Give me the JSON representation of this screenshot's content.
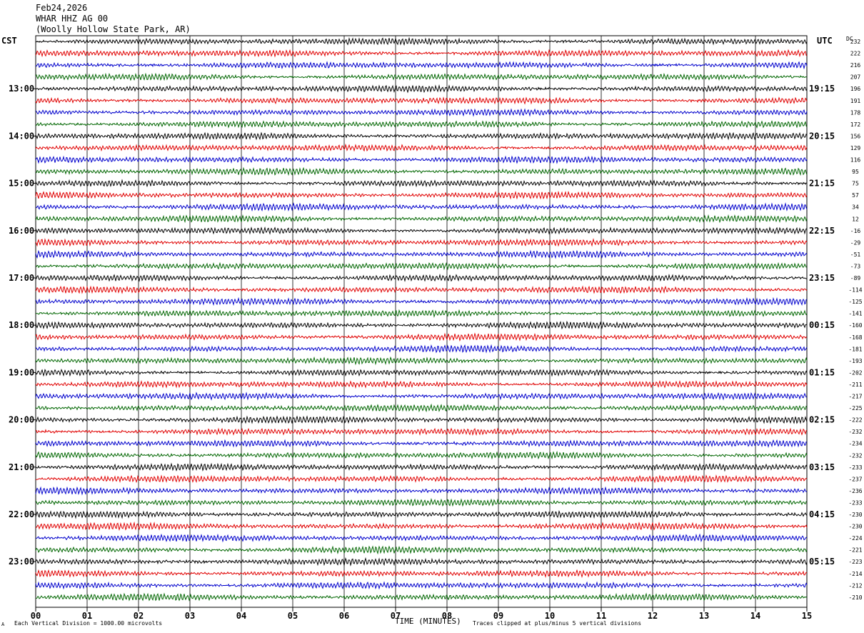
{
  "header": {
    "date": "Feb24,2026",
    "station": "WHAR HHZ AG 00",
    "location": "(Woolly Hollow State Park, AR)"
  },
  "left_zone": "CST",
  "right_zone": "UTC",
  "dc_label": "DC",
  "footer": {
    "scale_note": "Each Vertical Division = 1000.00 microvolts",
    "xlabel": "TIME (MINUTES)",
    "clip_note": "Traces clipped at plus/minus 5 vertical divisions",
    "corner_mark": "A"
  },
  "chart_data": {
    "type": "line",
    "title": "WHAR HHZ AG 00",
    "xlabel": "TIME (MINUTES)",
    "ylabel": "",
    "xlim": [
      0,
      15
    ],
    "x_ticks": [
      "00",
      "01",
      "02",
      "03",
      "04",
      "05",
      "06",
      "07",
      "08",
      "09",
      "10",
      "11",
      "12",
      "13",
      "14",
      "15"
    ],
    "left_hour_labels": [
      "13:00",
      "14:00",
      "15:00",
      "16:00",
      "17:00",
      "18:00",
      "19:00",
      "20:00",
      "21:00",
      "22:00",
      "23:00"
    ],
    "right_hour_labels": [
      "19:15",
      "20:15",
      "21:15",
      "22:15",
      "23:15",
      "00:15",
      "01:15",
      "02:15",
      "03:15",
      "04:15",
      "05:15"
    ],
    "trace_colors": [
      "#000000",
      "#e00000",
      "#0000cc",
      "#006600"
    ],
    "dc_offsets": [
      232,
      222,
      216,
      207,
      196,
      191,
      178,
      172,
      156,
      129,
      116,
      95,
      75,
      57,
      34,
      12,
      -16,
      -29,
      -51,
      -73,
      -89,
      -114,
      -125,
      -141,
      -160,
      -168,
      -181,
      -193,
      -202,
      -211,
      -217,
      -225,
      -222,
      -232,
      -234,
      -232,
      -233,
      -237,
      -236,
      -233,
      -230,
      -230,
      -224,
      -221,
      -223,
      -214,
      -212,
      -210
    ],
    "grid": "vertical-minute-lines",
    "legend": "none"
  }
}
